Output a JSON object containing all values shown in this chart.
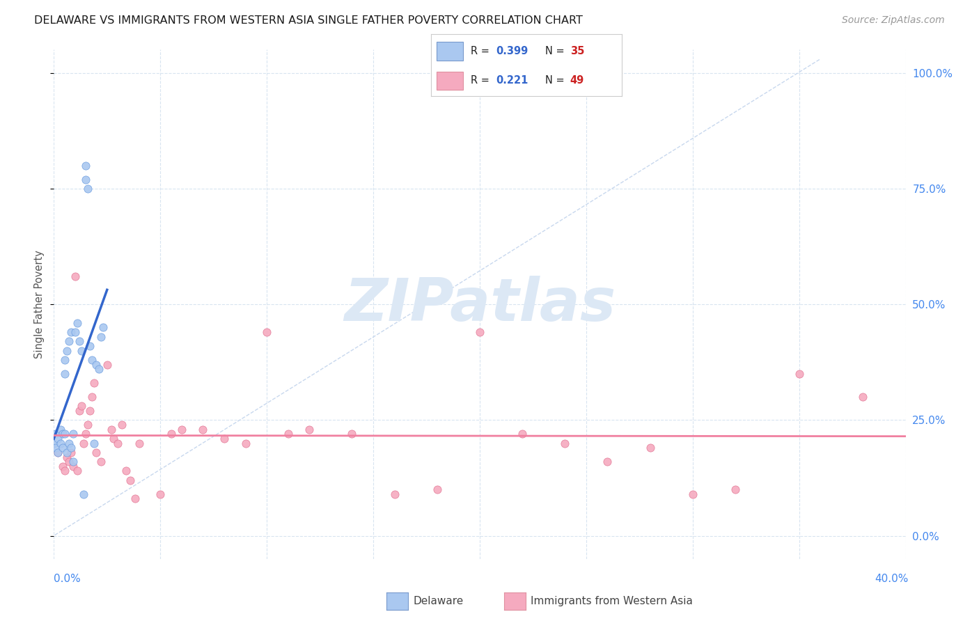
{
  "title": "DELAWARE VS IMMIGRANTS FROM WESTERN ASIA SINGLE FATHER POVERTY CORRELATION CHART",
  "source": "Source: ZipAtlas.com",
  "ylabel": "Single Father Poverty",
  "ytick_labels": [
    "0.0%",
    "25.0%",
    "50.0%",
    "75.0%",
    "100.0%"
  ],
  "ytick_vals": [
    0.0,
    0.25,
    0.5,
    0.75,
    1.0
  ],
  "xlim": [
    0.0,
    0.4
  ],
  "ylim": [
    -0.05,
    1.05
  ],
  "delaware_R": 0.399,
  "delaware_N": 35,
  "immigrants_R": 0.221,
  "immigrants_N": 49,
  "delaware_scatter_color": "#aac8f0",
  "immigrants_scatter_color": "#f5aabf",
  "delaware_line_color": "#3366cc",
  "immigrants_line_color": "#f080a0",
  "diag_line_color": "#c8d8ee",
  "watermark_text": "ZIPatlas",
  "watermark_color": "#dce8f5",
  "legend_R_color": "#3366cc",
  "legend_N_color": "#cc2222",
  "delaware_x": [
    0.0,
    0.001,
    0.001,
    0.002,
    0.002,
    0.003,
    0.003,
    0.004,
    0.004,
    0.005,
    0.005,
    0.005,
    0.006,
    0.006,
    0.007,
    0.007,
    0.008,
    0.008,
    0.009,
    0.009,
    0.01,
    0.011,
    0.012,
    0.013,
    0.014,
    0.015,
    0.015,
    0.016,
    0.017,
    0.018,
    0.019,
    0.02,
    0.021,
    0.022,
    0.023
  ],
  "delaware_y": [
    0.2,
    0.22,
    0.19,
    0.21,
    0.18,
    0.23,
    0.2,
    0.22,
    0.19,
    0.35,
    0.38,
    0.22,
    0.4,
    0.18,
    0.42,
    0.2,
    0.44,
    0.19,
    0.16,
    0.22,
    0.44,
    0.46,
    0.42,
    0.4,
    0.09,
    0.8,
    0.77,
    0.75,
    0.41,
    0.38,
    0.2,
    0.37,
    0.36,
    0.43,
    0.45
  ],
  "immigrants_x": [
    0.002,
    0.004,
    0.005,
    0.006,
    0.007,
    0.008,
    0.009,
    0.01,
    0.011,
    0.012,
    0.013,
    0.014,
    0.015,
    0.016,
    0.017,
    0.018,
    0.019,
    0.02,
    0.022,
    0.025,
    0.027,
    0.028,
    0.03,
    0.032,
    0.034,
    0.036,
    0.038,
    0.04,
    0.05,
    0.055,
    0.06,
    0.07,
    0.08,
    0.09,
    0.1,
    0.11,
    0.12,
    0.14,
    0.16,
    0.18,
    0.2,
    0.22,
    0.24,
    0.26,
    0.28,
    0.3,
    0.32,
    0.35,
    0.38
  ],
  "immigrants_y": [
    0.18,
    0.15,
    0.14,
    0.17,
    0.16,
    0.18,
    0.15,
    0.56,
    0.14,
    0.27,
    0.28,
    0.2,
    0.22,
    0.24,
    0.27,
    0.3,
    0.33,
    0.18,
    0.16,
    0.37,
    0.23,
    0.21,
    0.2,
    0.24,
    0.14,
    0.12,
    0.08,
    0.2,
    0.09,
    0.22,
    0.23,
    0.23,
    0.21,
    0.2,
    0.44,
    0.22,
    0.23,
    0.22,
    0.09,
    0.1,
    0.44,
    0.22,
    0.2,
    0.16,
    0.19,
    0.09,
    0.1,
    0.35,
    0.3
  ],
  "axis_bg_color": "#ffffff",
  "grid_color": "#d8e4f0",
  "spine_color": "#d0d8e8"
}
